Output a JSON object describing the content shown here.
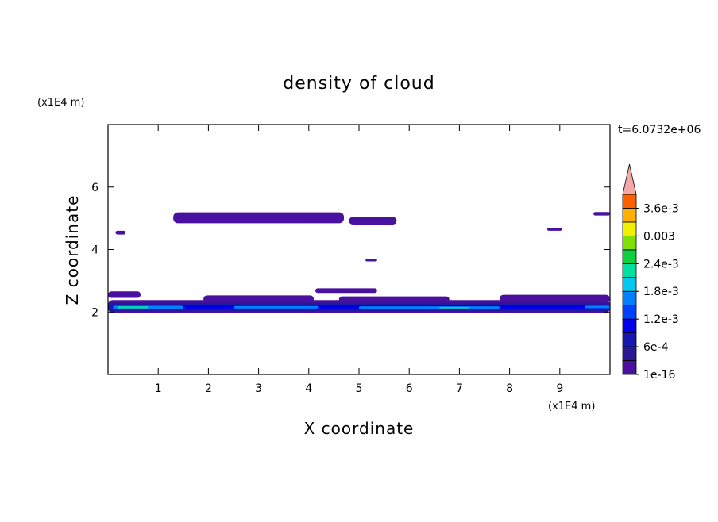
{
  "chart_data": {
    "type": "contour",
    "title": "density of cloud",
    "x_label": "X coordinate",
    "y_label": "Z coordinate",
    "x_unit": "(x1E4 m)",
    "y_unit": "(x1E4 m)",
    "time_label": "t=6.0732e+06",
    "xlim": [
      0,
      10
    ],
    "ylim": [
      0,
      8
    ],
    "xticks": [
      1,
      2,
      3,
      4,
      5,
      6,
      7,
      8,
      9
    ],
    "yticks": [
      2,
      4,
      6
    ],
    "colorbar": {
      "levels": [
        1e-16,
        0.0003,
        0.0006,
        0.0009,
        0.0012,
        0.0015,
        0.0018,
        0.0021,
        0.0024,
        0.0027,
        0.003,
        0.0033,
        0.0036,
        0.0039
      ],
      "colors": [
        "#4a10a0",
        "#2a1890",
        "#1818b0",
        "#0000e8",
        "#0040ff",
        "#0080ff",
        "#00c8f0",
        "#00e0a0",
        "#10d040",
        "#80e000",
        "#f0f000",
        "#ffb000",
        "#ff6000",
        "#ff2000"
      ],
      "extend_color": "#f4a8a8",
      "ticks": [
        {
          "value": 1e-16,
          "label": "1e-16"
        },
        {
          "value": 0.0006,
          "label": "6e-4"
        },
        {
          "value": 0.0012,
          "label": "1.2e-3"
        },
        {
          "value": 0.0018,
          "label": "1.8e-3"
        },
        {
          "value": 0.0024,
          "label": "2.4e-3"
        },
        {
          "value": 0.003,
          "label": "0.003"
        },
        {
          "value": 0.0036,
          "label": "3.6e-3"
        }
      ]
    },
    "regions": [
      {
        "level": 1e-16,
        "x": [
          1.3,
          4.7
        ],
        "z": [
          4.84,
          5.19
        ]
      },
      {
        "level": 1e-16,
        "x": [
          4.8,
          5.75
        ],
        "z": [
          4.8,
          5.04
        ]
      },
      {
        "level": 1e-16,
        "x": [
          9.67,
          10
        ],
        "z": [
          5.09,
          5.2
        ]
      },
      {
        "level": 1e-16,
        "x": [
          0.15,
          0.35
        ],
        "z": [
          4.48,
          4.6
        ]
      },
      {
        "level": 1e-16,
        "x": [
          8.75,
          9.04
        ],
        "z": [
          4.6,
          4.7
        ]
      },
      {
        "level": 1e-16,
        "x": [
          5.13,
          5.36
        ],
        "z": [
          3.62,
          3.7
        ]
      },
      {
        "level": 1e-16,
        "x": [
          4.13,
          5.36
        ],
        "z": [
          2.61,
          2.76
        ]
      },
      {
        "level": 1e-16,
        "x": [
          0,
          0.65
        ],
        "z": [
          2.45,
          2.66
        ]
      },
      {
        "level": 1e-16,
        "x": [
          1.9,
          4.1
        ],
        "z": [
          2.3,
          2.53
        ]
      },
      {
        "level": 1e-16,
        "x": [
          4.6,
          6.8
        ],
        "z": [
          2.3,
          2.5
        ]
      },
      {
        "level": 1e-16,
        "x": [
          7.8,
          10
        ],
        "z": [
          2.3,
          2.55
        ]
      },
      {
        "level": 1e-16,
        "x": [
          0,
          10
        ],
        "z": [
          1.97,
          2.38
        ]
      },
      {
        "level": 0.0003,
        "x": [
          0,
          10
        ],
        "z": [
          2.02,
          2.3
        ]
      },
      {
        "level": 0.0006,
        "x": [
          0,
          10
        ],
        "z": [
          2.05,
          2.25
        ]
      },
      {
        "level": 0.0009,
        "x": [
          0.1,
          9.9
        ],
        "z": [
          2.08,
          2.22
        ]
      },
      {
        "level": 0.0015,
        "x": [
          0.1,
          1.5
        ],
        "z": [
          2.1,
          2.2
        ]
      },
      {
        "level": 0.0015,
        "x": [
          2.5,
          4.2
        ],
        "z": [
          2.11,
          2.19
        ]
      },
      {
        "level": 0.0015,
        "x": [
          5,
          7.8
        ],
        "z": [
          2.1,
          2.18
        ]
      },
      {
        "level": 0.0015,
        "x": [
          9.5,
          10
        ],
        "z": [
          2.12,
          2.2
        ]
      },
      {
        "level": 0.0021,
        "x": [
          0.2,
          0.8
        ],
        "z": [
          2.12,
          2.18
        ]
      },
      {
        "level": 0.0021,
        "x": [
          6.6,
          7.2
        ],
        "z": [
          2.12,
          2.16
        ]
      }
    ]
  }
}
